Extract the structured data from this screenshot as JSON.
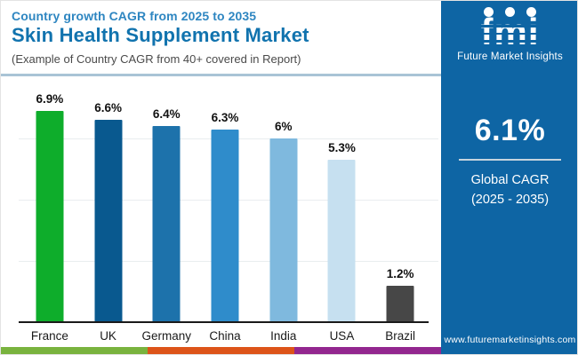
{
  "header": {
    "kicker": "Country growth CAGR from 2025 to 2035",
    "title": "Skin Health Supplement Market",
    "subtitle": "(Example of Country CAGR from 40+ covered in Report)"
  },
  "chart_data": {
    "type": "bar",
    "title": "Skin Health Supplement Market — Country growth CAGR from 2025 to 2035",
    "categories": [
      "France",
      "UK",
      "Germany",
      "China",
      "India",
      "USA",
      "Brazil"
    ],
    "values": [
      6.9,
      6.6,
      6.4,
      6.3,
      6.0,
      5.3,
      1.2
    ],
    "value_labels": [
      "6.9%",
      "6.6%",
      "6.4%",
      "6.3%",
      "6%",
      "5.3%",
      "1.2%"
    ],
    "bar_colors": [
      "#0ead2b",
      "#09598f",
      "#1d72ab",
      "#2f8ccb",
      "#7fb9de",
      "#c6e0f0",
      "#474747"
    ],
    "xlabel": "",
    "ylabel": "",
    "ylim": [
      0,
      8
    ],
    "gridline_values": [
      2,
      4,
      6
    ],
    "grid": true,
    "legend": false
  },
  "sidebar": {
    "bg_color": "#0e65a4",
    "logo": {
      "text": "fmi",
      "tagline": "Future Market Insights",
      "dot_icons": [
        "globe-americas-icon",
        "globe-compass-icon",
        "globe-europe-icon"
      ]
    },
    "stat_value": "6.1%",
    "stat_label_line1": "Global CAGR",
    "stat_label_line2": "(2025 - 2035)",
    "website": "www.futuremarketinsights.com"
  },
  "footer": {
    "stripe_colors": [
      "#79b33e",
      "#dd5419",
      "#93278f"
    ]
  }
}
